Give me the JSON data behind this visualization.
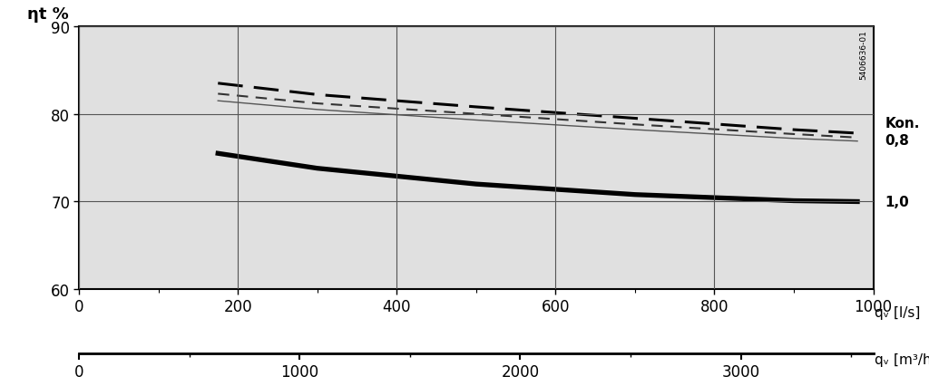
{
  "ylabel": "ηt %",
  "xlabel_ls": "qᵥ [l/s]",
  "xlabel_m3h": "qᵥ [m³/h]",
  "ylim": [
    60,
    90
  ],
  "yticks": [
    60,
    70,
    80,
    90
  ],
  "xlim_ls": [
    0,
    1000
  ],
  "xticks_ls": [
    0,
    200,
    400,
    600,
    800,
    1000
  ],
  "xlim_m3h": [
    0,
    3600
  ],
  "xticks_m3h": [
    0,
    1000,
    2000,
    3000
  ],
  "background_color": "#e0e0e0",
  "grid_color": "#888888",
  "annotation_vertical": "5406636-01",
  "annotation_kon": "Kon.\n0,8",
  "annotation_10": "1,0",
  "curve_dash1_x": [
    175,
    300,
    500,
    700,
    900,
    980
  ],
  "curve_dash1_y": [
    83.5,
    82.2,
    80.8,
    79.5,
    78.2,
    77.8
  ],
  "curve_dash2_x": [
    175,
    300,
    500,
    700,
    900,
    980
  ],
  "curve_dash2_y": [
    82.3,
    81.2,
    80.0,
    78.8,
    77.7,
    77.3
  ],
  "curve_solid_thin_x": [
    175,
    300,
    500,
    700,
    900,
    980
  ],
  "curve_solid_thin_y": [
    81.5,
    80.5,
    79.3,
    78.2,
    77.2,
    76.9
  ],
  "curve_solid_thick_x": [
    175,
    300,
    500,
    700,
    900,
    980
  ],
  "curve_solid_thick_y": [
    75.5,
    73.8,
    72.0,
    70.8,
    70.1,
    70.0
  ]
}
